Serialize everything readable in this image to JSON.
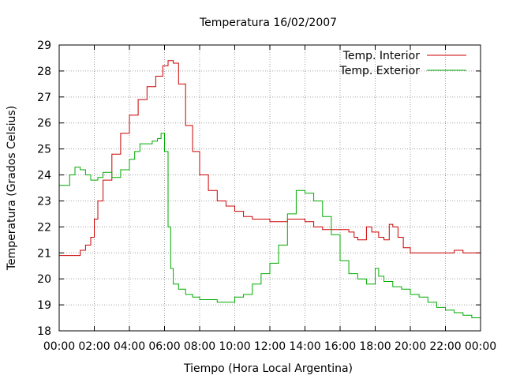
{
  "chart_data": {
    "type": "line",
    "title": "Temperatura 16/02/2007",
    "xlabel": "Tiempo (Hora Local Argentina)",
    "ylabel": "Temperatura (Grados Celsius)",
    "xlim": [
      0,
      24
    ],
    "ylim": [
      18,
      29
    ],
    "x_ticks": [
      0,
      2,
      4,
      6,
      8,
      10,
      12,
      14,
      16,
      18,
      20,
      22,
      24
    ],
    "x_tick_labels": [
      "00:00",
      "02:00",
      "04:00",
      "06:00",
      "08:00",
      "10:00",
      "12:00",
      "14:00",
      "16:00",
      "18:00",
      "20:00",
      "22:00",
      "00:00"
    ],
    "y_ticks": [
      18,
      19,
      20,
      21,
      22,
      23,
      24,
      25,
      26,
      27,
      28,
      29
    ],
    "grid": true,
    "legend_position": "top-right",
    "series": [
      {
        "name": "Temp. Interior",
        "color": "#cc0000",
        "x": [
          0,
          1.0,
          1.2,
          1.5,
          1.8,
          2.0,
          2.2,
          2.5,
          3.0,
          3.5,
          4.0,
          4.5,
          5.0,
          5.5,
          5.9,
          6.2,
          6.5,
          6.8,
          7.2,
          7.6,
          8.0,
          8.5,
          9.0,
          9.5,
          10.0,
          10.5,
          11.0,
          12.0,
          12.5,
          13.0,
          13.5,
          14.0,
          14.5,
          15.0,
          16.0,
          16.5,
          16.8,
          17.0,
          17.5,
          17.8,
          18.2,
          18.5,
          18.8,
          19.0,
          19.3,
          19.6,
          20.0,
          20.5,
          21.0,
          21.5,
          22.0,
          22.5,
          23.0,
          23.5,
          24.0
        ],
        "y": [
          20.9,
          20.9,
          21.1,
          21.3,
          21.6,
          22.3,
          23.0,
          23.8,
          24.8,
          25.6,
          26.3,
          26.9,
          27.4,
          27.8,
          28.2,
          28.4,
          28.3,
          27.5,
          25.9,
          24.9,
          24.0,
          23.4,
          23.0,
          22.8,
          22.6,
          22.4,
          22.3,
          22.2,
          22.2,
          22.3,
          22.3,
          22.2,
          22.0,
          21.9,
          21.9,
          21.8,
          21.6,
          21.5,
          22.0,
          21.8,
          21.6,
          21.5,
          22.1,
          22.0,
          21.6,
          21.2,
          21.0,
          21.0,
          21.0,
          21.0,
          21.0,
          21.1,
          21.0,
          21.0,
          21.0
        ]
      },
      {
        "name": "Temp. Exterior",
        "color": "#00aa00",
        "x": [
          0,
          0.3,
          0.6,
          0.9,
          1.2,
          1.5,
          1.8,
          2.2,
          2.5,
          3.0,
          3.5,
          4.0,
          4.3,
          4.6,
          5.0,
          5.3,
          5.6,
          5.8,
          6.0,
          6.2,
          6.35,
          6.5,
          6.8,
          7.2,
          7.6,
          8.0,
          8.5,
          9.0,
          9.5,
          10.0,
          10.5,
          11.0,
          11.5,
          12.0,
          12.5,
          13.0,
          13.5,
          14.0,
          14.5,
          15.0,
          15.5,
          16.0,
          16.5,
          17.0,
          17.5,
          17.8,
          18.0,
          18.2,
          18.5,
          19.0,
          19.5,
          20.0,
          20.5,
          21.0,
          21.5,
          22.0,
          22.5,
          23.0,
          23.5,
          24.0
        ],
        "y": [
          23.6,
          23.6,
          24.0,
          24.3,
          24.2,
          24.0,
          23.8,
          23.9,
          24.1,
          23.9,
          24.2,
          24.6,
          24.9,
          25.2,
          25.2,
          25.3,
          25.4,
          25.6,
          24.9,
          22.0,
          20.4,
          19.8,
          19.6,
          19.4,
          19.3,
          19.2,
          19.2,
          19.1,
          19.1,
          19.3,
          19.4,
          19.8,
          20.2,
          20.6,
          21.3,
          22.5,
          23.4,
          23.3,
          23.0,
          22.4,
          21.7,
          20.7,
          20.2,
          20.0,
          19.8,
          19.8,
          20.4,
          20.1,
          19.9,
          19.7,
          19.6,
          19.4,
          19.3,
          19.1,
          18.9,
          18.8,
          18.7,
          18.6,
          18.5,
          18.4
        ]
      }
    ]
  }
}
